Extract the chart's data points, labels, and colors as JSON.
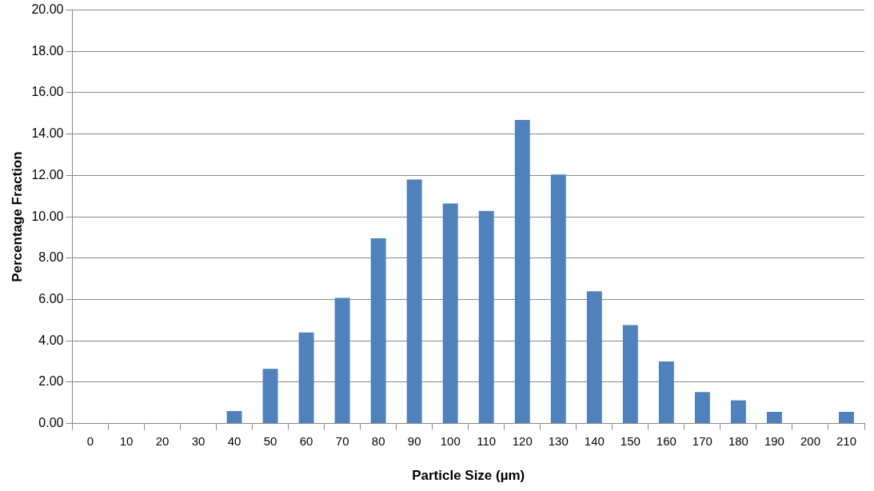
{
  "chart_data": {
    "type": "bar",
    "xlabel": "Particle Size (µm)",
    "ylabel": "Percentage Fraction",
    "categories": [
      "0",
      "10",
      "20",
      "30",
      "40",
      "50",
      "60",
      "70",
      "80",
      "90",
      "100",
      "110",
      "120",
      "130",
      "140",
      "150",
      "160",
      "170",
      "180",
      "190",
      "200",
      "210"
    ],
    "values": [
      0,
      0,
      0,
      0,
      0.6,
      2.64,
      4.4,
      6.08,
      8.96,
      11.8,
      10.64,
      10.28,
      14.68,
      12.04,
      6.4,
      4.76,
      3.0,
      1.52,
      1.12,
      0.56,
      0,
      0.56
    ],
    "color": "#4f81bd",
    "ylim": [
      0,
      20
    ],
    "yticks": [
      {
        "value": 0,
        "label": "0.00"
      },
      {
        "value": 2,
        "label": "2.00"
      },
      {
        "value": 4,
        "label": "4.00"
      },
      {
        "value": 6,
        "label": "6.00"
      },
      {
        "value": 8,
        "label": "8.00"
      },
      {
        "value": 10,
        "label": "10.00"
      },
      {
        "value": 12,
        "label": "12.00"
      },
      {
        "value": 14,
        "label": "14.00"
      },
      {
        "value": 16,
        "label": "16.00"
      },
      {
        "value": 18,
        "label": "18.00"
      },
      {
        "value": 20,
        "label": "20.00"
      }
    ],
    "grid": "y",
    "legend": false
  }
}
